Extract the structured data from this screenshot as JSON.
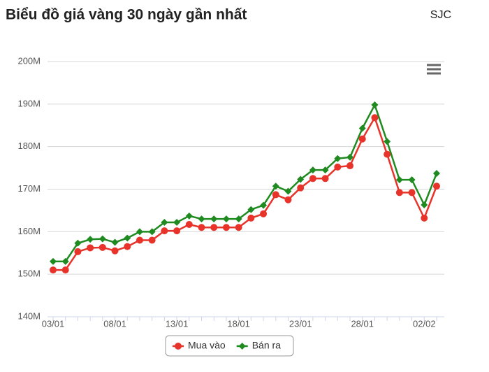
{
  "chart_data": {
    "type": "line",
    "title": "Biểu đồ giá vàng 30 ngày gần nhất",
    "subtitle": "SJC",
    "categories": [
      "03/01",
      null,
      null,
      null,
      null,
      "08/01",
      null,
      null,
      null,
      null,
      "13/01",
      null,
      null,
      null,
      null,
      "18/01",
      null,
      null,
      null,
      null,
      "23/01",
      null,
      null,
      null,
      null,
      "28/01",
      null,
      null,
      null,
      null,
      "02/02",
      null
    ],
    "series": [
      {
        "name": "Mua vào",
        "color": "#e8332a",
        "marker": "circle",
        "values": [
          151000000,
          151000000,
          155300000,
          156200000,
          156300000,
          155500000,
          156500000,
          158000000,
          158000000,
          160200000,
          160200000,
          161700000,
          161000000,
          161000000,
          161000000,
          161000000,
          163200000,
          164200000,
          168700000,
          167500000,
          170300000,
          172500000,
          172500000,
          175200000,
          175500000,
          181800000,
          186800000,
          178200000,
          169200000,
          169200000,
          163200000,
          170700000
        ]
      },
      {
        "name": "Bán ra",
        "color": "#1f8a1f",
        "marker": "diamond",
        "values": [
          153000000,
          153000000,
          157300000,
          158200000,
          158300000,
          157500000,
          158500000,
          160000000,
          160000000,
          162200000,
          162200000,
          163700000,
          163000000,
          163000000,
          163000000,
          163000000,
          165200000,
          166200000,
          170700000,
          169500000,
          172300000,
          174500000,
          174500000,
          177200000,
          177500000,
          184300000,
          189800000,
          181200000,
          172200000,
          172200000,
          166300000,
          173700000
        ]
      }
    ],
    "ylim": [
      140000000,
      200000000
    ],
    "yticks": [
      {
        "value": 140000000,
        "label": "140M"
      },
      {
        "value": 150000000,
        "label": "150M"
      },
      {
        "value": 160000000,
        "label": "160M"
      },
      {
        "value": 170000000,
        "label": "170M"
      },
      {
        "value": 180000000,
        "label": "180M"
      },
      {
        "value": 190000000,
        "label": "190M"
      },
      {
        "value": 200000000,
        "label": "200M"
      }
    ],
    "grid": true,
    "legend": "bottom"
  }
}
